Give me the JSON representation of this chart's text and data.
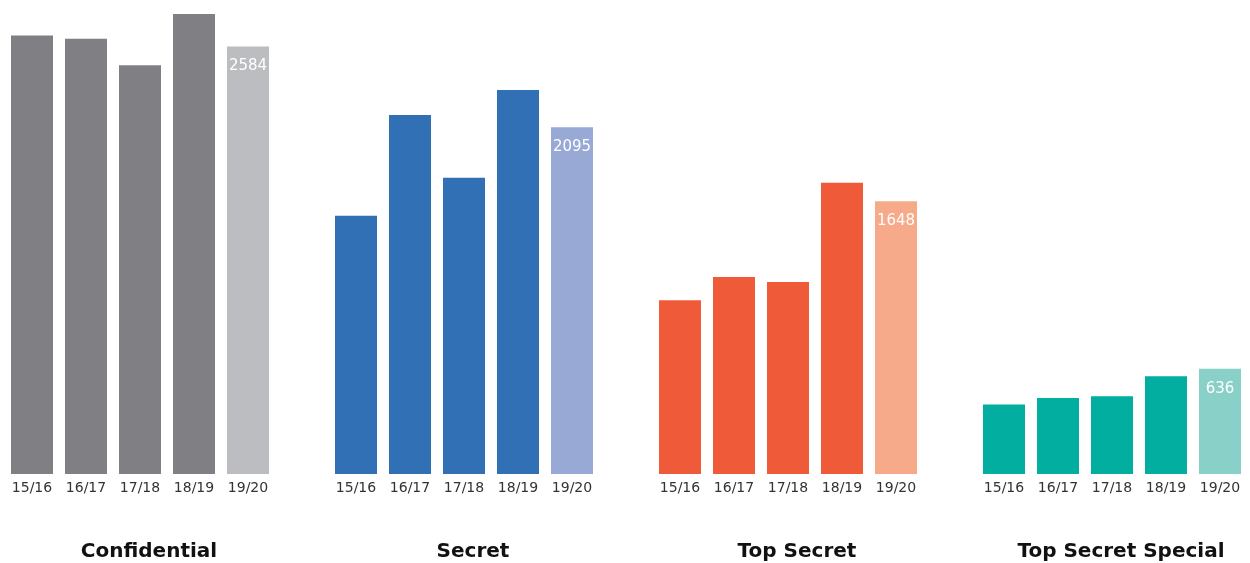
{
  "chart_data": [
    {
      "type": "bar",
      "title": "Confidential",
      "categories": [
        "15/16",
        "16/17",
        "17/18",
        "18/19",
        "19/20"
      ],
      "values": [
        2650,
        2630,
        2470,
        2780,
        2584
      ],
      "colors": [
        "#808084",
        "#808084",
        "#808084",
        "#808084",
        "#bcbdc1"
      ],
      "value_labels": [
        null,
        null,
        null,
        null,
        "2584"
      ],
      "tick_labels": "x"
    },
    {
      "type": "bar",
      "title": "Secret",
      "categories": [
        "15/16",
        "16/17",
        "17/18",
        "18/19",
        "19/20"
      ],
      "values": [
        1560,
        2170,
        1790,
        2320,
        2095
      ],
      "colors": [
        "#3270b6",
        "#3270b6",
        "#3270b6",
        "#3270b6",
        "#97a9d4"
      ],
      "value_labels": [
        null,
        null,
        null,
        null,
        "2095"
      ],
      "tick_labels": "x"
    },
    {
      "type": "bar",
      "title": "Top Secret",
      "categories": [
        "15/16",
        "16/17",
        "17/18",
        "18/19",
        "19/20"
      ],
      "values": [
        1050,
        1190,
        1160,
        1760,
        1648
      ],
      "colors": [
        "#ef5a38",
        "#ef5a38",
        "#ef5a38",
        "#ef5a38",
        "#f7aa8a"
      ],
      "value_labels": [
        null,
        null,
        null,
        null,
        "1648"
      ],
      "tick_labels": "x"
    },
    {
      "type": "bar",
      "title": "Top Secret Special",
      "categories": [
        "15/16",
        "16/17",
        "17/18",
        "18/19",
        "19/20"
      ],
      "values": [
        420,
        460,
        470,
        590,
        636
      ],
      "colors": [
        "#02ae9f",
        "#02ae9f",
        "#02ae9f",
        "#02ae9f",
        "#89d0c8"
      ],
      "value_labels": [
        null,
        null,
        null,
        null,
        "636"
      ],
      "tick_labels": "x"
    }
  ]
}
